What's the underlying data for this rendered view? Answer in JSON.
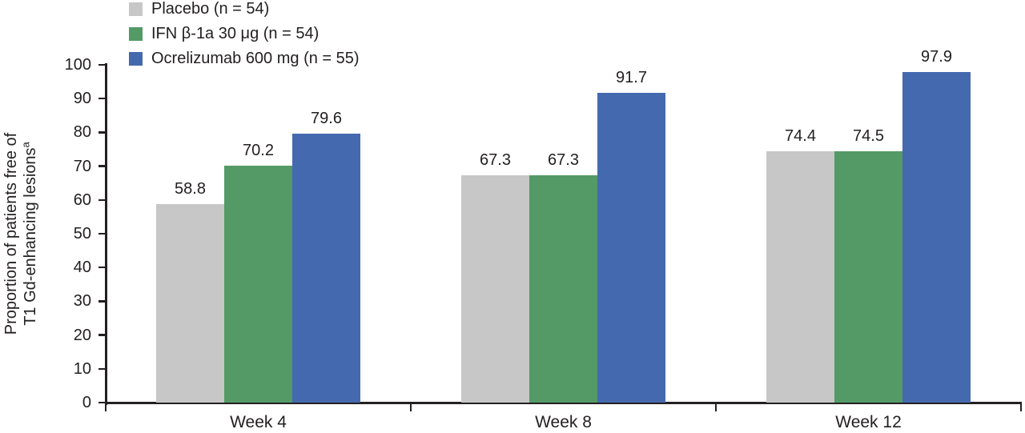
{
  "figure": {
    "background": "#ffffff",
    "text_color": "#242021",
    "axis_color": "#242021"
  },
  "legend": {
    "position": "top-left",
    "items": [
      {
        "key": "placebo",
        "label": "Placebo (n = 54)",
        "color": "#c7c7c7"
      },
      {
        "key": "ifn-b1a",
        "label": "IFN β-1a 30 μg (n = 54)",
        "color": "#549a66"
      },
      {
        "key": "ocrelizumab",
        "label": "Ocrelizumab 600 mg (n = 55)",
        "color": "#4569ae"
      }
    ]
  },
  "chart_data": {
    "type": "bar",
    "title": "",
    "categories": [
      "Week 4",
      "Week 8",
      "Week 12"
    ],
    "series": [
      {
        "key": "placebo",
        "name": "Placebo (n = 54)",
        "color": "#c7c7c7",
        "values": [
          58.8,
          67.3,
          74.4
        ]
      },
      {
        "key": "ifn-b1a",
        "name": "IFN β-1a 30 μg (n = 54)",
        "color": "#549a66",
        "values": [
          70.2,
          67.3,
          74.5
        ]
      },
      {
        "key": "ocrelizumab",
        "name": "Ocrelizumab 600 mg (n = 55)",
        "color": "#4569ae",
        "values": [
          79.6,
          91.7,
          97.9
        ]
      }
    ],
    "value_labels": [
      [
        "58.8",
        "67.3",
        "74.4"
      ],
      [
        "70.2",
        "67.3",
        "74.5"
      ],
      [
        "79.6",
        "91.7",
        "97.9"
      ]
    ],
    "xlabel": "",
    "ylabel_lines": [
      "Proportion of patients free of",
      "T1 Gd-enhancing lesions"
    ],
    "ylabel_superscript": "a",
    "ylim": [
      0,
      100
    ],
    "yticks": [
      0,
      10,
      20,
      30,
      40,
      50,
      60,
      70,
      80,
      90,
      100
    ],
    "grid": false,
    "legend_position": "top-left",
    "show_value_labels": true
  }
}
